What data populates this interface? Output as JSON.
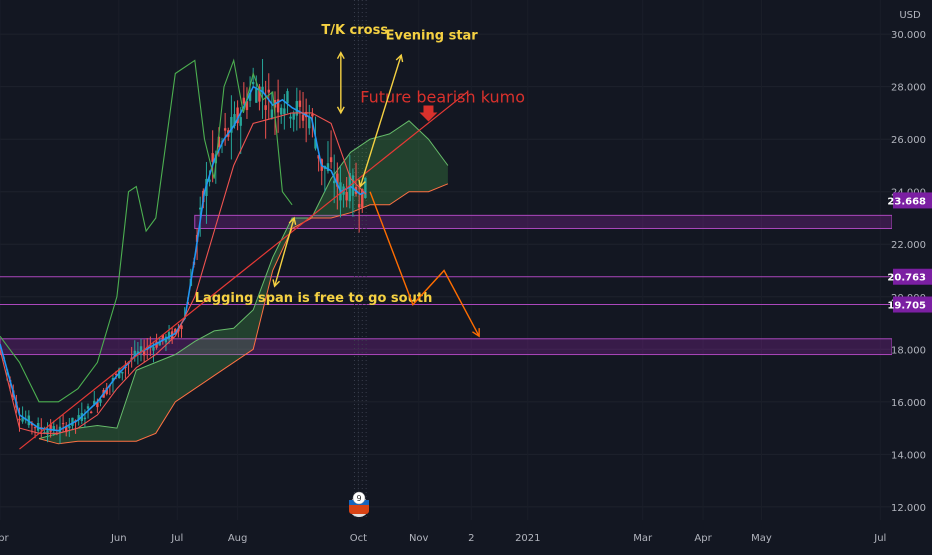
{
  "chart_data": {
    "type": "line",
    "currency": "USD",
    "y_ticks": [
      12,
      14,
      16,
      18,
      20,
      22,
      24,
      26,
      28,
      30
    ],
    "y_tick_labels": [
      "12.000",
      "14.000",
      "16.000",
      "18.000",
      "20.000",
      "22.000",
      "24.000",
      "26.000",
      "28.000",
      "30.000"
    ],
    "x_ticks": [
      {
        "label": "Apr",
        "day": -10
      },
      {
        "label": "Jun",
        "day": 51
      },
      {
        "label": "Jul",
        "day": 81
      },
      {
        "label": "Aug",
        "day": 112
      },
      {
        "label": "Oct",
        "day": 174
      },
      {
        "label": "Nov",
        "day": 205
      },
      {
        "label": "2",
        "day": 232
      },
      {
        "label": "2021",
        "day": 261
      },
      {
        "label": "Mar",
        "day": 320
      },
      {
        "label": "Apr",
        "day": 351
      },
      {
        "label": "May",
        "day": 381
      },
      {
        "label": "Jul",
        "day": 442
      }
    ],
    "ylim": [
      11.5,
      31.3
    ],
    "xlim": [
      -10,
      448
    ],
    "price_tags": [
      {
        "value": 23.668,
        "label": "23.668",
        "color": "#7b1fa2"
      },
      {
        "value": 20.763,
        "label": "20.763",
        "color": "#7b1fa2"
      },
      {
        "value": 19.705,
        "label": "19.705",
        "color": "#7b1fa2"
      }
    ],
    "zones": [
      {
        "x0": 90,
        "x1": 448,
        "y0": 22.6,
        "y1": 23.1
      },
      {
        "x0": -10,
        "x1": 448,
        "y0": 17.8,
        "y1": 18.4
      }
    ],
    "hlines": [
      20.763,
      19.705
    ],
    "series": [
      {
        "color": "#2196f3",
        "x": [
          -10,
          0,
          10,
          20,
          30,
          40,
          50,
          60,
          70,
          80,
          85,
          90,
          95,
          100,
          105,
          110,
          115,
          120,
          125,
          130,
          135,
          140,
          145,
          150,
          155,
          160,
          165,
          170,
          175,
          178
        ],
        "y": [
          18.2,
          15.5,
          15.0,
          14.9,
          15.3,
          16.0,
          17.0,
          17.8,
          18.2,
          18.6,
          19.2,
          21.5,
          24.0,
          25.2,
          26.0,
          26.5,
          27.2,
          28.0,
          27.8,
          27.3,
          27.5,
          27.2,
          27.0,
          26.8,
          25.0,
          24.8,
          24.0,
          24.2,
          23.9,
          24.0
        ]
      },
      {
        "color": "#ef5350",
        "x": [
          -10,
          0,
          10,
          20,
          30,
          40,
          50,
          60,
          70,
          80,
          90,
          100,
          110,
          120,
          130,
          140,
          150,
          160,
          170,
          178
        ],
        "y": [
          18.0,
          15.0,
          14.8,
          14.8,
          15.0,
          15.5,
          16.5,
          17.3,
          17.8,
          18.5,
          20.0,
          22.5,
          25.0,
          26.6,
          26.8,
          27.0,
          27.0,
          26.6,
          24.5,
          23.9
        ]
      },
      {
        "color": "#4caf50",
        "x": [
          -10,
          0,
          10,
          20,
          30,
          40,
          50,
          56,
          60,
          65,
          70,
          80,
          90,
          95,
          100,
          105,
          110,
          115,
          120,
          125,
          130,
          135,
          140
        ],
        "y": [
          18.5,
          17.5,
          16.0,
          16.0,
          16.5,
          17.5,
          20.0,
          24.0,
          24.2,
          22.5,
          23.0,
          28.5,
          29.0,
          26.0,
          24.5,
          28.0,
          29.0,
          27.0,
          28.5,
          27.5,
          27.8,
          24.0,
          23.5
        ]
      }
    ],
    "kumo": {
      "x": [
        10,
        20,
        30,
        40,
        50,
        60,
        70,
        80,
        90,
        100,
        110,
        120,
        130,
        140,
        150,
        160,
        170,
        180,
        190,
        200,
        210,
        220
      ],
      "span_a": [
        14.6,
        14.8,
        15.0,
        15.1,
        15.0,
        17.2,
        17.5,
        17.8,
        18.3,
        18.7,
        18.8,
        19.5,
        21.5,
        23.0,
        23.0,
        24.5,
        25.5,
        26.0,
        26.2,
        26.7,
        26.0,
        25.0
      ],
      "span_b": [
        14.6,
        14.4,
        14.5,
        14.5,
        14.5,
        14.5,
        14.8,
        16.0,
        16.5,
        17.0,
        17.5,
        18.0,
        21.0,
        22.6,
        23.0,
        23.0,
        23.2,
        23.5,
        23.5,
        24.0,
        24.0,
        24.3
      ]
    },
    "trendline": {
      "x0": 0,
      "y0": 14.2,
      "x1": 230,
      "y1": 27.8
    },
    "annotations": [
      {
        "text": "T/K cross",
        "x": 155,
        "y": 30.0,
        "color": "#f5d142"
      },
      {
        "text": "Evening star",
        "x": 188,
        "y": 29.8,
        "color": "#f5d142"
      },
      {
        "text": "Future bearish kumo",
        "x": 175,
        "y": 27.4,
        "color": "#d9312c"
      },
      {
        "text": "Lagging span is free to go south",
        "x": 90,
        "y": 19.8,
        "color": "#f5d142"
      }
    ]
  }
}
